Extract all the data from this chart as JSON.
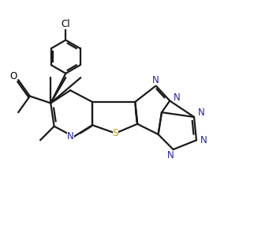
{
  "background_color": "#ffffff",
  "line_color": "#1a1a1a",
  "N_color": "#2222aa",
  "S_color": "#c8a000",
  "line_width": 1.6,
  "figsize": [
    3.22,
    2.96
  ],
  "dpi": 100,
  "xlim": [
    -1.0,
    9.0
  ],
  "ylim": [
    -1.5,
    8.5
  ]
}
